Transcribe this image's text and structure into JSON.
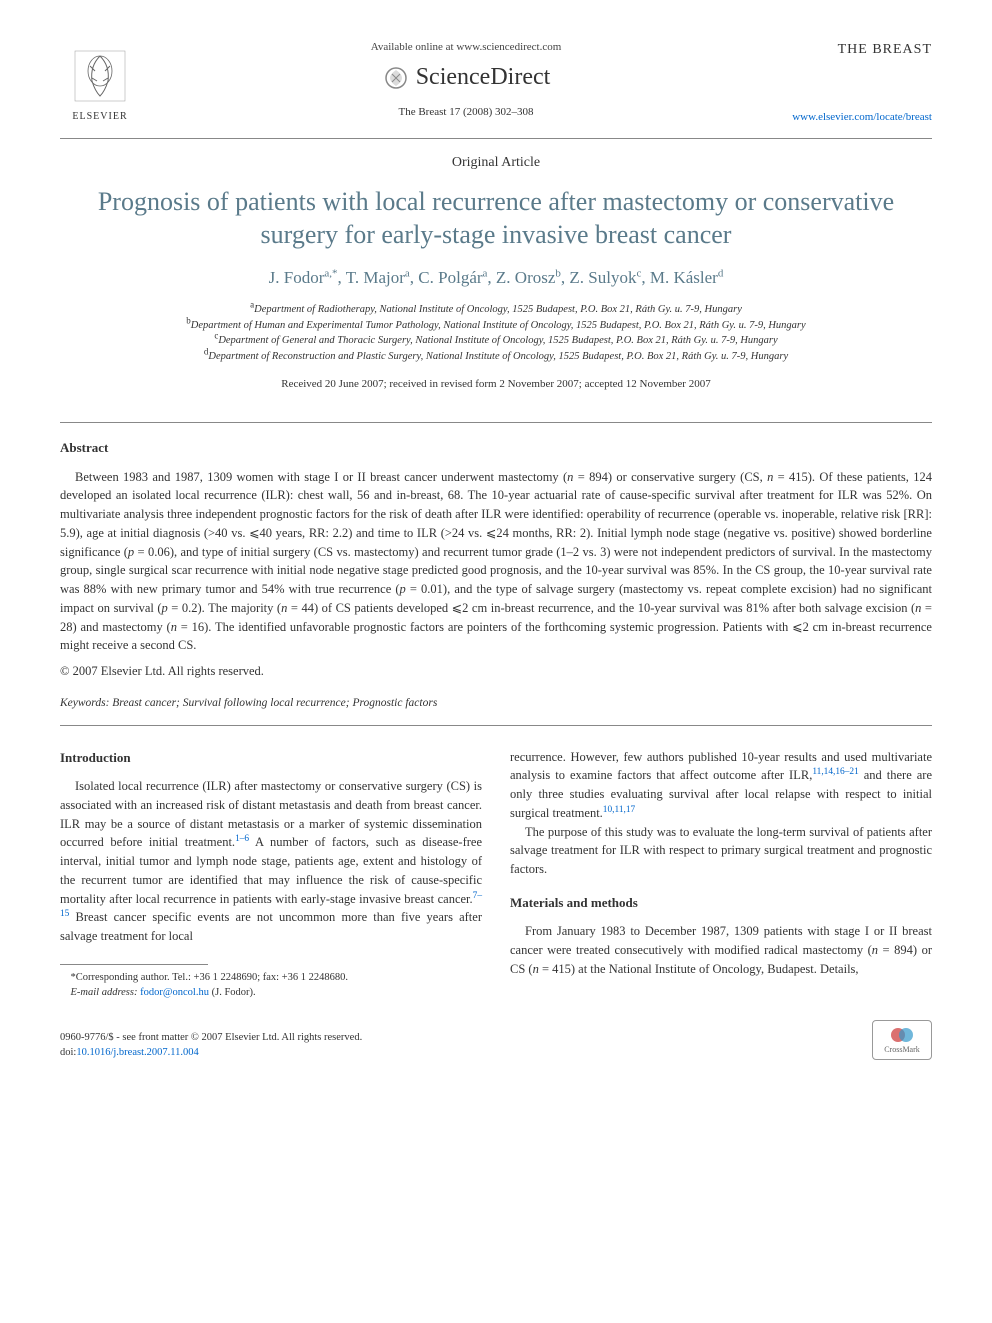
{
  "header": {
    "elsevier_label": "ELSEVIER",
    "available_text": "Available online at www.sciencedirect.com",
    "sciencedirect_label": "ScienceDirect",
    "citation": "The Breast 17 (2008) 302–308",
    "journal_title": "THE BREAST",
    "journal_link": "www.elsevier.com/locate/breast"
  },
  "article": {
    "type": "Original Article",
    "title": "Prognosis of patients with local recurrence after mastectomy or conservative surgery for early-stage invasive breast cancer",
    "authors_html": "J. Fodor<sup>a,*</sup>, T. Major<sup>a</sup>, C. Polgár<sup>a</sup>, Z. Orosz<sup>b</sup>, Z. Sulyok<sup>c</sup>, M. Kásler<sup>d</sup>",
    "affiliations": [
      {
        "sup": "a",
        "text": "Department of Radiotherapy, National Institute of Oncology, 1525 Budapest, P.O. Box 21, Ráth Gy. u. 7-9, Hungary"
      },
      {
        "sup": "b",
        "text": "Department of Human and Experimental Tumor Pathology, National Institute of Oncology, 1525 Budapest, P.O. Box 21, Ráth Gy. u. 7-9, Hungary"
      },
      {
        "sup": "c",
        "text": "Department of General and Thoracic Surgery, National Institute of Oncology, 1525 Budapest, P.O. Box 21, Ráth Gy. u. 7-9, Hungary"
      },
      {
        "sup": "d",
        "text": "Department of Reconstruction and Plastic Surgery, National Institute of Oncology, 1525 Budapest, P.O. Box 21, Ráth Gy. u. 7-9, Hungary"
      }
    ],
    "dates": "Received 20 June 2007; received in revised form 2 November 2007; accepted 12 November 2007"
  },
  "abstract": {
    "heading": "Abstract",
    "body_html": "Between 1983 and 1987, 1309 women with stage I or II breast cancer underwent mastectomy (<i>n</i> = 894) or conservative surgery (CS, <i>n</i> = 415). Of these patients, 124 developed an isolated local recurrence (ILR): chest wall, 56 and in-breast, 68. The 10-year actuarial rate of cause-specific survival after treatment for ILR was 52%. On multivariate analysis three independent prognostic factors for the risk of death after ILR were identified: operability of recurrence (operable vs. inoperable, relative risk [RR]: 5.9), age at initial diagnosis (>40 vs. ⩽40 years, RR: 2.2) and time to ILR (>24 vs. ⩽24 months, RR: 2). Initial lymph node stage (negative vs. positive) showed borderline significance (<i>p</i> = 0.06), and type of initial surgery (CS vs. mastectomy) and recurrent tumor grade (1–2 vs. 3) were not independent predictors of survival. In the mastectomy group, single surgical scar recurrence with initial node negative stage predicted good prognosis, and the 10-year survival was 85%. In the CS group, the 10-year survival rate was 88% with new primary tumor and 54% with true recurrence (<i>p</i> = 0.01), and the type of salvage surgery (mastectomy vs. repeat complete excision) had no significant impact on survival (<i>p</i> = 0.2). The majority (<i>n</i> = 44) of CS patients developed ⩽2 cm in-breast recurrence, and the 10-year survival was 81% after both salvage excision (<i>n</i> = 28) and mastectomy (<i>n</i> = 16). The identified unfavorable prognostic factors are pointers of the forthcoming systemic progression. Patients with ⩽2 cm in-breast recurrence might receive a second CS.",
    "copyright": "© 2007 Elsevier Ltd. All rights reserved."
  },
  "keywords": {
    "label": "Keywords:",
    "text": "Breast cancer; Survival following local recurrence; Prognostic factors"
  },
  "body": {
    "intro_heading": "Introduction",
    "intro_p1_html": "Isolated local recurrence (ILR) after mastectomy or conservative surgery (CS) is associated with an increased risk of distant metastasis and death from breast cancer. ILR may be a source of distant metastasis or a marker of systemic dissemination occurred before initial treatment.<sup class=\"ref-link\">1–6</sup> A number of factors, such as disease-free interval, initial tumor and lymph node stage, patients age, extent and histology of the recurrent tumor are identified that may influence the risk of cause-specific mortality after local recurrence in patients with early-stage invasive breast cancer.<sup class=\"ref-link\">7–15</sup> Breast cancer specific events are not uncommon more than five years after salvage treatment for local",
    "col2_p1_html": "recurrence. However, few authors published 10-year results and used multivariate analysis to examine factors that affect outcome after ILR,<sup class=\"ref-link\">11,14,16–21</sup> and there are only three studies evaluating survival after local relapse with respect to initial surgical treatment.<sup class=\"ref-link\">10,11,17</sup>",
    "col2_p2": "The purpose of this study was to evaluate the long-term survival of patients after salvage treatment for ILR with respect to primary surgical treatment and prognostic factors.",
    "methods_heading": "Materials and methods",
    "methods_p1_html": "From January 1983 to December 1987, 1309 patients with stage I or II breast cancer were treated consecutively with modified radical mastectomy (<i>n</i> = 894) or CS (<i>n</i> = 415) at the National Institute of Oncology, Budapest. Details,"
  },
  "footnote": {
    "corresponding_html": "*Corresponding author. Tel.: +36 1 2248690; fax: +36 1 2248680.",
    "email_label": "E-mail address:",
    "email": "fodor@oncol.hu",
    "email_paren": "(J. Fodor)."
  },
  "footer": {
    "line1": "0960-9776/$ - see front matter © 2007 Elsevier Ltd. All rights reserved.",
    "doi_label": "doi:",
    "doi": "10.1016/j.breast.2007.11.004",
    "crossmark": "CrossMark"
  },
  "colors": {
    "title_color": "#5a7a8a",
    "link_color": "#0066cc",
    "text_color": "#333333",
    "rule_color": "#888888"
  }
}
